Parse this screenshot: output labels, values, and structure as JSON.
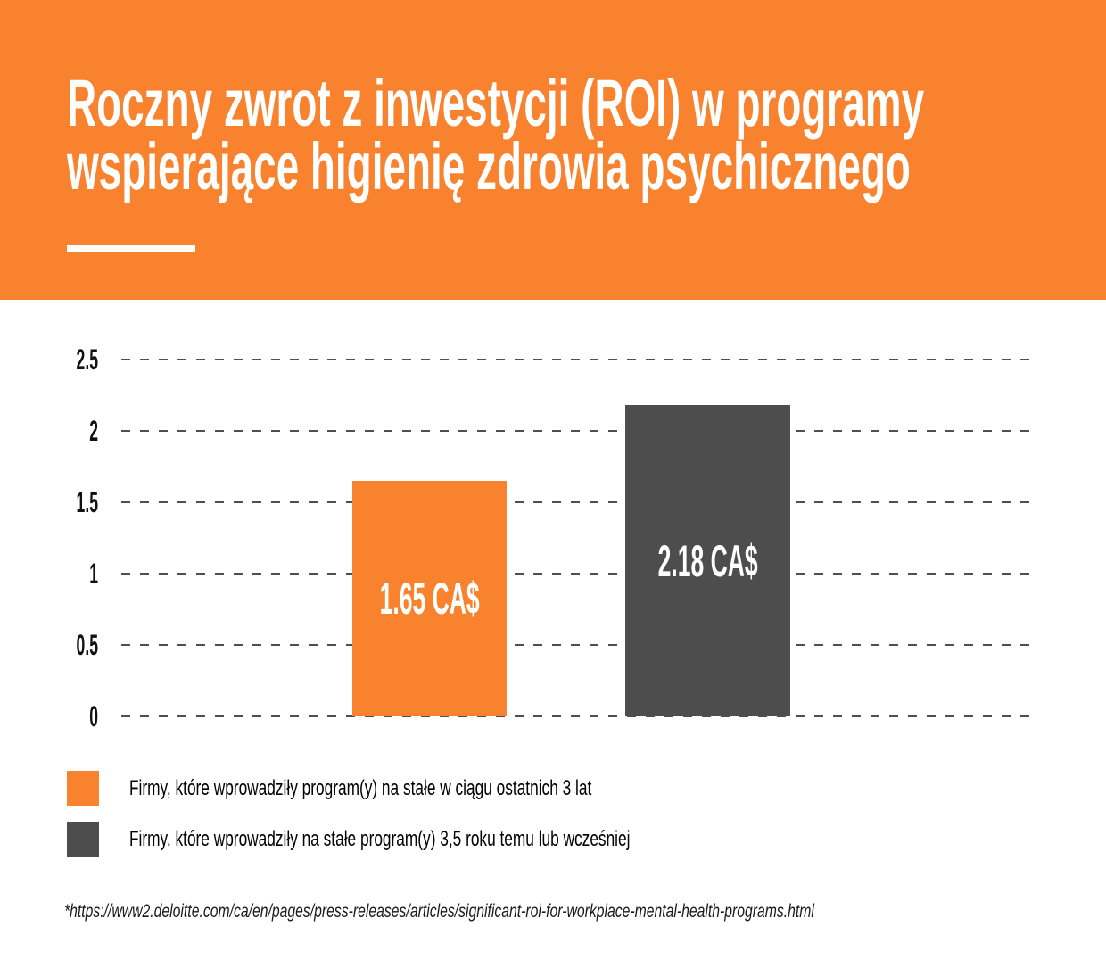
{
  "header": {
    "title_line1": "Roczny zwrot z inwestycji (ROI) w programy",
    "title_line2": "wspierające higienię zdrowia psychicznego",
    "background_color": "#F8822D",
    "text_color": "#FFFFFF"
  },
  "chart_data": {
    "type": "bar",
    "title": "Roczny zwrot z inwestycji (ROI) w programy wspierające higienię zdrowia psychicznego",
    "categories": [
      "Firmy, które wprowadziły program(y) na stałe w ciągu ostatnich 3 lat",
      "Firmy, które wprowadziły na stałe program(y) 3,5 roku temu lub wcześniej"
    ],
    "values": [
      1.65,
      2.18
    ],
    "value_labels": [
      "1.65 CA$",
      "2.18 CA$"
    ],
    "unit": "CA$",
    "bar_colors": [
      "#F8822D",
      "#4D4D4D"
    ],
    "ylim": [
      0,
      2.5
    ],
    "yticks": [
      0,
      0.5,
      1,
      1.5,
      2,
      2.5
    ],
    "ytick_labels": [
      "0",
      "0.5",
      "1",
      "1.5",
      "2",
      "2.5"
    ],
    "grid": "dashed horizontal gridlines",
    "gridline_color": "#4F4F4F",
    "legend_position": "bottom"
  },
  "legend": {
    "items": [
      {
        "label": "Firmy, które wprowadziły program(y) na stałe w ciągu ostatnich 3 lat",
        "color": "#F8822D"
      },
      {
        "label": "Firmy, które wprowadziły na stałe program(y) 3,5 roku temu lub wcześniej",
        "color": "#4D4D4D"
      }
    ]
  },
  "footer": {
    "source_note": "*https://www2.deloitte.com/ca/en/pages/press-releases/articles/significant-roi-for-workplace-mental-health-programs.html"
  }
}
